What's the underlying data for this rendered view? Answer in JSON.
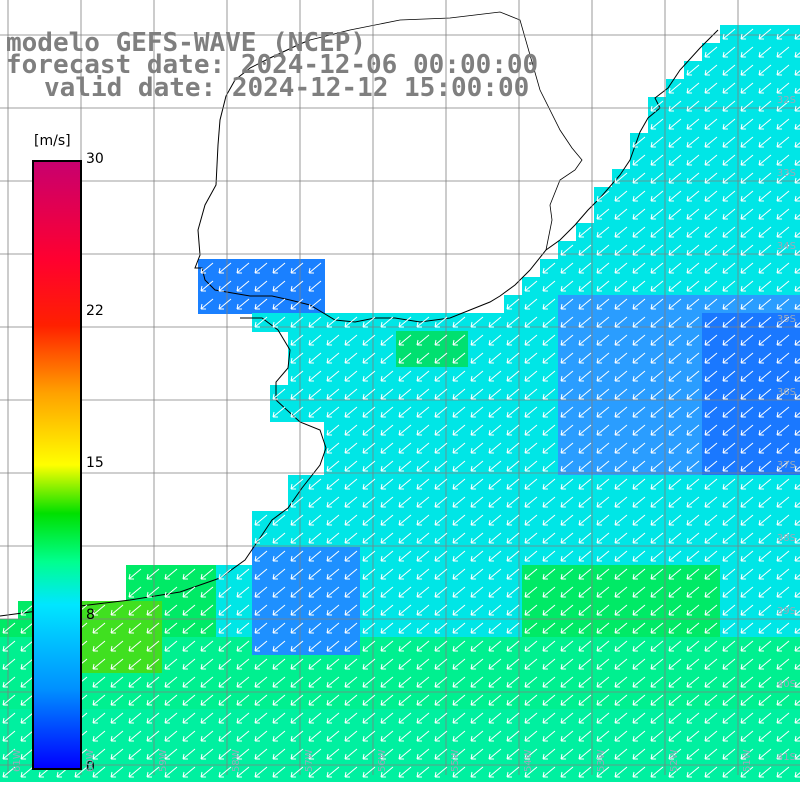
{
  "title": {
    "line1": "modelo GEFS-WAVE (NCEP)",
    "line2": "forecast date: 2024-12-06 00:00:00",
    "line3": "valid date: 2024-12-12 15:00:00"
  },
  "colorbar": {
    "unit": "[m/s]",
    "ticks": [
      "30",
      "22",
      "15",
      "8",
      "0"
    ],
    "colors": [
      "#0000ff",
      "#00e6ff",
      "#00e000",
      "#ffff00",
      "#ff2000",
      "#c8006e"
    ]
  },
  "graticule": {
    "lat_labels": [
      "32S",
      "33S",
      "34S",
      "35S",
      "36S",
      "37S",
      "38S",
      "39S",
      "40S",
      "41S"
    ],
    "lon_labels": [
      "61W",
      "60W",
      "59W",
      "58W",
      "57W",
      "56W",
      "55W",
      "54W",
      "53W",
      "52W",
      "51W"
    ]
  },
  "colors": {
    "land": "#ffffff",
    "coast": "#000000",
    "grid": "#7f7f7f",
    "arrow": "#ffffff",
    "title": "#7f7f7f"
  }
}
